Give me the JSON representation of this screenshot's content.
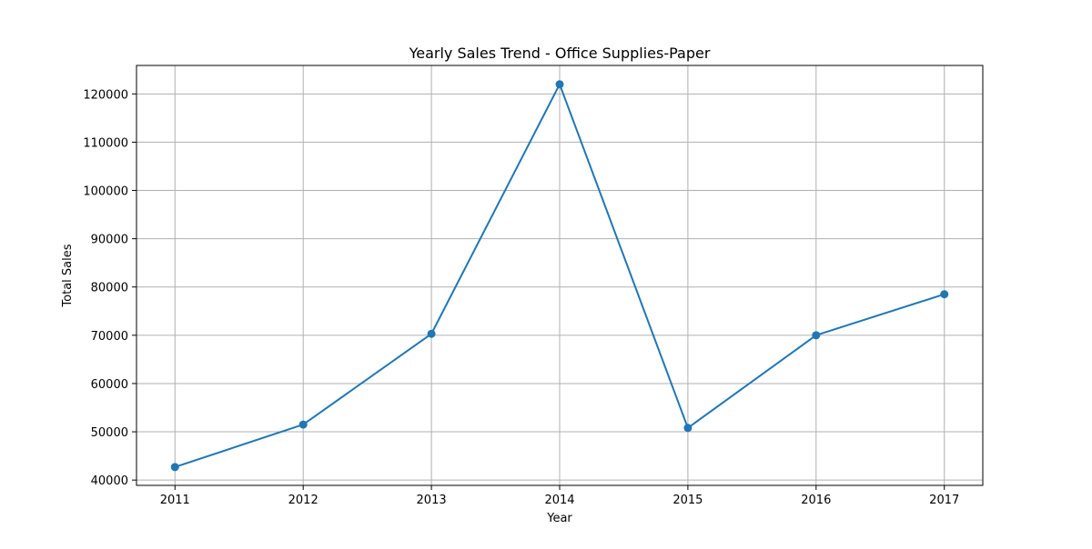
{
  "chart_data": {
    "type": "line",
    "title": "Yearly Sales Trend - Office Supplies-Paper",
    "xlabel": "Year",
    "ylabel": "Total Sales",
    "x": [
      2011,
      2012,
      2013,
      2014,
      2015,
      2016,
      2017
    ],
    "x_tick_labels": [
      "2011",
      "2012",
      "2013",
      "2014",
      "2015",
      "2016",
      "2017"
    ],
    "series": [
      {
        "name": "",
        "values": [
          42700,
          51500,
          70300,
          122000,
          50800,
          70000,
          78500
        ],
        "color": "#1f77b4",
        "marker": "circle"
      }
    ],
    "xlim": [
      2010.7,
      2017.3
    ],
    "ylim": [
      38900,
      125900
    ],
    "y_ticks": [
      40000,
      50000,
      60000,
      70000,
      80000,
      90000,
      100000,
      110000,
      120000
    ],
    "y_tick_labels": [
      "40000",
      "50000",
      "60000",
      "70000",
      "80000",
      "90000",
      "100000",
      "110000",
      "120000"
    ],
    "grid": true,
    "grid_color": "#b0b0b0",
    "legend": "none"
  }
}
